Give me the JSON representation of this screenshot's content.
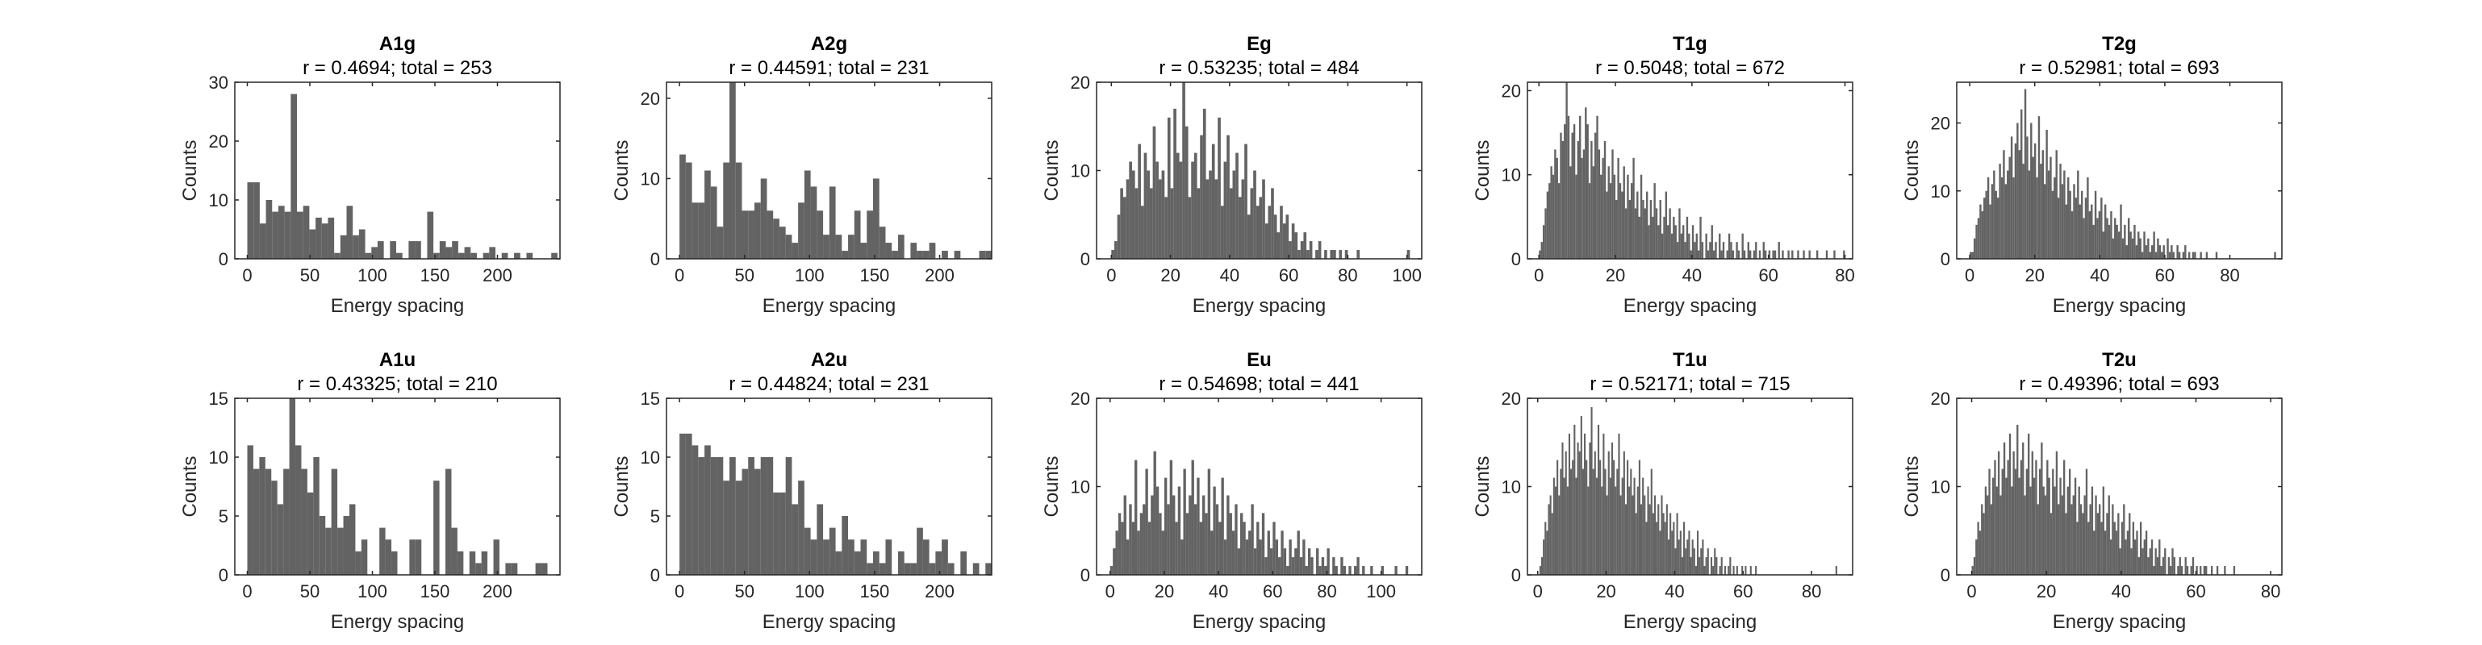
{
  "figure": {
    "bar_color": "#636363",
    "axis_color": "#262626"
  },
  "chart_data": [
    {
      "type": "bar",
      "title": "A1g",
      "subtitle": "r = 0.4694; total = 253",
      "xlabel": "Energy spacing",
      "ylabel": "Counts",
      "xlim": [
        -10,
        250
      ],
      "ylim": [
        0,
        30
      ],
      "xticks": [
        0,
        50,
        100,
        150,
        200
      ],
      "yticks": [
        0,
        10,
        20,
        30
      ],
      "bin_start": 0,
      "bin_width": 4.96,
      "values": [
        13,
        13,
        6,
        10,
        8,
        9,
        8,
        28,
        8,
        9,
        5,
        7,
        6,
        7,
        1,
        4,
        9,
        4,
        5,
        1,
        2,
        3,
        0,
        3,
        1,
        0,
        3,
        3,
        0,
        8,
        1,
        3,
        2,
        3,
        1,
        2,
        1,
        0,
        1,
        2,
        0,
        1,
        0,
        1,
        0,
        1,
        0,
        0,
        0,
        1
      ]
    },
    {
      "type": "bar",
      "title": "A2g",
      "subtitle": "r = 0.44591; total = 231",
      "xlabel": "Energy spacing",
      "ylabel": "Counts",
      "xlim": [
        -10,
        240
      ],
      "ylim": [
        0,
        22
      ],
      "xticks": [
        0,
        50,
        100,
        150,
        200
      ],
      "yticks": [
        0,
        10,
        20
      ],
      "bin_start": 0,
      "bin_width": 4.8,
      "values": [
        13,
        12,
        7,
        7,
        11,
        9,
        4,
        12,
        22,
        12,
        6,
        6,
        7,
        10,
        6,
        5,
        4,
        3,
        2,
        7,
        11,
        9,
        6,
        3,
        9,
        3,
        1,
        3,
        6,
        2,
        6,
        10,
        4,
        2,
        1,
        3,
        0,
        2,
        1,
        1,
        2,
        0,
        1,
        0,
        1,
        0,
        0,
        0,
        1,
        1
      ]
    },
    {
      "type": "bar",
      "title": "Eg",
      "subtitle": "r = 0.53235; total = 484",
      "xlabel": "Energy spacing",
      "ylabel": "Counts",
      "xlim": [
        -5,
        105
      ],
      "ylim": [
        0,
        20
      ],
      "xticks": [
        0,
        20,
        40,
        60,
        80,
        100
      ],
      "yticks": [
        0,
        10,
        20
      ],
      "bin_start": 0,
      "bin_width": 1,
      "values": [
        1,
        2,
        5,
        8,
        7,
        9,
        11,
        10,
        8,
        13,
        6,
        12,
        10,
        8,
        15,
        11,
        9,
        10,
        7,
        16,
        8,
        17,
        12,
        11,
        20,
        15,
        7,
        11,
        12,
        8,
        14,
        17,
        9,
        10,
        13,
        9,
        16,
        6,
        11,
        14,
        8,
        10,
        12,
        7,
        9,
        13,
        5,
        8,
        10,
        6,
        7,
        9,
        4,
        6,
        8,
        5,
        3,
        6,
        4,
        5,
        2,
        4,
        3,
        1,
        2,
        3,
        1,
        2,
        0,
        1,
        2,
        0,
        1,
        0,
        1,
        1,
        0,
        1,
        0,
        1,
        0,
        0,
        0,
        1,
        0,
        0,
        0,
        0,
        0,
        0,
        0,
        0,
        0,
        0,
        0,
        0,
        0,
        0,
        0,
        0,
        1
      ]
    },
    {
      "type": "bar",
      "title": "T1g",
      "subtitle": "r = 0.5048; total = 672",
      "xlabel": "Energy spacing",
      "ylabel": "Counts",
      "xlim": [
        -3,
        82
      ],
      "ylim": [
        0,
        21
      ],
      "xticks": [
        0,
        20,
        40,
        60,
        80
      ],
      "yticks": [
        0,
        10,
        20
      ],
      "bin_start": 0,
      "bin_width": 0.5,
      "values": [
        1,
        2,
        4,
        6,
        8,
        9,
        11,
        10,
        13,
        12,
        9,
        15,
        14,
        16,
        21,
        17,
        11,
        15,
        16,
        10,
        14,
        17,
        12,
        13,
        18,
        16,
        9,
        14,
        11,
        15,
        17,
        13,
        10,
        12,
        14,
        8,
        11,
        9,
        13,
        10,
        7,
        12,
        9,
        8,
        11,
        6,
        10,
        7,
        9,
        12,
        6,
        8,
        5,
        10,
        7,
        6,
        8,
        4,
        7,
        5,
        9,
        6,
        4,
        7,
        3,
        5,
        8,
        4,
        6,
        3,
        5,
        4,
        2,
        6,
        3,
        4,
        2,
        5,
        3,
        1,
        4,
        2,
        3,
        1,
        5,
        2,
        0,
        3,
        1,
        2,
        4,
        1,
        2,
        0,
        3,
        1,
        2,
        0,
        1,
        3,
        2,
        1,
        0,
        2,
        1,
        0,
        3,
        1,
        0,
        2,
        1,
        0,
        1,
        2,
        0,
        1,
        0,
        2,
        1,
        0,
        1,
        0,
        1,
        1,
        0,
        2,
        0,
        1,
        0,
        0,
        1,
        0,
        1,
        0,
        0,
        1,
        0,
        0,
        1,
        0,
        0,
        1,
        0,
        0,
        0,
        1,
        0,
        0,
        0,
        0,
        1,
        0,
        0,
        0,
        1,
        0,
        0,
        0,
        0,
        1
      ]
    },
    {
      "type": "bar",
      "title": "T2g",
      "subtitle": "r = 0.52981; total = 693",
      "xlabel": "Energy spacing",
      "ylabel": "Counts",
      "xlim": [
        -4,
        96
      ],
      "ylim": [
        0,
        26
      ],
      "xticks": [
        0,
        20,
        40,
        60,
        80
      ],
      "yticks": [
        0,
        10,
        20
      ],
      "bin_start": 0,
      "bin_width": 0.6,
      "values": [
        1,
        1,
        3,
        5,
        6,
        8,
        7,
        9,
        10,
        12,
        8,
        11,
        13,
        10,
        9,
        14,
        12,
        16,
        11,
        13,
        15,
        18,
        12,
        17,
        20,
        16,
        22,
        14,
        25,
        18,
        13,
        20,
        15,
        17,
        12,
        21,
        14,
        16,
        11,
        19,
        13,
        15,
        10,
        12,
        16,
        9,
        14,
        11,
        13,
        8,
        12,
        10,
        7,
        11,
        9,
        13,
        8,
        10,
        6,
        9,
        12,
        7,
        8,
        5,
        10,
        6,
        7,
        9,
        4,
        8,
        6,
        5,
        7,
        3,
        6,
        5,
        4,
        8,
        3,
        5,
        2,
        6,
        4,
        3,
        5,
        2,
        4,
        3,
        1,
        4,
        2,
        3,
        1,
        2,
        4,
        1,
        3,
        2,
        1,
        2,
        0,
        3,
        1,
        2,
        1,
        0,
        2,
        1,
        0,
        1,
        2,
        0,
        1,
        0,
        1,
        1,
        0,
        0,
        1,
        0,
        0,
        1,
        0,
        0,
        0,
        0,
        1,
        0,
        0,
        0,
        0,
        0,
        0,
        0,
        0,
        0,
        0,
        0,
        0,
        0,
        0,
        0,
        0,
        0,
        0,
        0,
        0,
        0,
        0,
        0,
        0,
        0,
        0,
        0,
        0,
        0,
        1
      ]
    },
    {
      "type": "bar",
      "title": "A1u",
      "subtitle": "r = 0.43325; total = 210",
      "xlabel": "Energy spacing",
      "ylabel": "Counts",
      "xlim": [
        -10,
        250
      ],
      "ylim": [
        0,
        15
      ],
      "xticks": [
        0,
        50,
        100,
        150,
        200
      ],
      "yticks": [
        0,
        5,
        10,
        15
      ],
      "bin_start": 0,
      "bin_width": 4.8,
      "values": [
        11,
        9,
        10,
        9,
        8,
        6,
        9,
        15,
        11,
        9,
        7,
        10,
        5,
        4,
        9,
        4,
        5,
        6,
        2,
        3,
        0,
        0,
        4,
        3,
        2,
        0,
        0,
        3,
        3,
        0,
        0,
        8,
        0,
        9,
        4,
        2,
        0,
        2,
        1,
        2,
        0,
        3,
        0,
        1,
        1,
        0,
        0,
        0,
        1,
        1
      ]
    },
    {
      "type": "bar",
      "title": "A2u",
      "subtitle": "r = 0.44824; total = 231",
      "xlabel": "Energy spacing",
      "ylabel": "Counts",
      "xlim": [
        -10,
        240
      ],
      "ylim": [
        0,
        15
      ],
      "xticks": [
        0,
        50,
        100,
        150,
        200
      ],
      "yticks": [
        0,
        5,
        10,
        15
      ],
      "bin_start": 0,
      "bin_width": 4.8,
      "values": [
        12,
        12,
        11,
        10,
        11,
        10,
        10,
        8,
        10,
        8,
        9,
        10,
        9,
        10,
        10,
        7,
        7,
        10,
        6,
        8,
        4,
        3,
        6,
        3,
        4,
        2,
        5,
        3,
        2,
        3,
        1,
        2,
        1,
        3,
        0,
        2,
        1,
        1,
        4,
        3,
        1,
        2,
        3,
        1,
        0,
        2,
        0,
        1,
        0,
        1
      ]
    },
    {
      "type": "bar",
      "title": "Eu",
      "subtitle": "r = 0.54698; total = 441",
      "xlabel": "Energy spacing",
      "ylabel": "Counts",
      "xlim": [
        -5,
        115
      ],
      "ylim": [
        0,
        20
      ],
      "xticks": [
        0,
        20,
        40,
        60,
        80,
        100
      ],
      "yticks": [
        0,
        10,
        20
      ],
      "bin_start": 0,
      "bin_width": 1,
      "values": [
        1,
        3,
        5,
        7,
        6,
        9,
        4,
        8,
        6,
        13,
        5,
        7,
        8,
        12,
        6,
        9,
        14,
        10,
        7,
        5,
        11,
        8,
        13,
        9,
        6,
        10,
        4,
        12,
        7,
        9,
        13,
        8,
        11,
        6,
        9,
        7,
        12,
        5,
        10,
        8,
        6,
        11,
        4,
        9,
        7,
        5,
        8,
        3,
        7,
        6,
        4,
        5,
        8,
        3,
        6,
        4,
        7,
        2,
        5,
        3,
        6,
        4,
        2,
        5,
        3,
        1,
        4,
        2,
        3,
        5,
        2,
        4,
        1,
        3,
        2,
        0,
        3,
        1,
        2,
        1,
        3,
        0,
        2,
        1,
        0,
        2,
        1,
        0,
        1,
        0,
        1,
        2,
        0,
        1,
        0,
        0,
        1,
        0,
        0,
        0,
        1,
        0,
        0,
        0,
        0,
        1,
        0,
        0,
        0,
        1
      ]
    },
    {
      "type": "bar",
      "title": "T1u",
      "subtitle": "r = 0.52171; total = 715",
      "xlabel": "Energy spacing",
      "ylabel": "Counts",
      "xlim": [
        -3,
        92
      ],
      "ylim": [
        0,
        20
      ],
      "xticks": [
        0,
        20,
        40,
        60,
        80
      ],
      "yticks": [
        0,
        10,
        20
      ],
      "bin_start": 0,
      "bin_width": 0.5,
      "values": [
        0,
        1,
        2,
        4,
        6,
        5,
        8,
        9,
        7,
        11,
        10,
        13,
        9,
        12,
        15,
        11,
        14,
        10,
        16,
        12,
        13,
        17,
        11,
        15,
        14,
        18,
        12,
        16,
        13,
        10,
        15,
        19,
        12,
        14,
        11,
        17,
        13,
        10,
        16,
        12,
        9,
        14,
        11,
        15,
        13,
        10,
        12,
        16,
        9,
        11,
        14,
        8,
        13,
        10,
        12,
        9,
        11,
        7,
        10,
        13,
        8,
        11,
        9,
        6,
        10,
        8,
        12,
        7,
        9,
        6,
        8,
        5,
        9,
        7,
        6,
        8,
        4,
        7,
        5,
        6,
        3,
        7,
        4,
        5,
        2,
        6,
        3,
        4,
        5,
        2,
        4,
        3,
        1,
        5,
        2,
        3,
        4,
        1,
        2,
        3,
        0,
        2,
        1,
        3,
        2,
        0,
        1,
        2,
        0,
        1,
        0,
        1,
        2,
        0,
        1,
        0,
        1,
        0,
        0,
        1,
        0,
        1,
        0,
        0,
        1,
        0,
        0,
        1,
        0,
        0,
        0,
        0,
        0,
        0,
        0,
        0,
        0,
        0,
        0,
        0,
        0,
        0,
        0,
        0,
        0,
        0,
        0,
        0,
        0,
        0,
        0,
        0,
        0,
        0,
        0,
        0,
        0,
        0,
        0,
        0,
        0,
        0,
        0,
        0,
        0,
        0,
        0,
        0,
        0,
        0,
        0,
        0,
        0,
        0,
        1
      ]
    },
    {
      "type": "bar",
      "title": "T2u",
      "subtitle": "r = 0.49396; total = 693",
      "xlabel": "Energy spacing",
      "ylabel": "Counts",
      "xlim": [
        -4,
        83
      ],
      "ylim": [
        0,
        20
      ],
      "xticks": [
        0,
        20,
        40,
        60,
        80
      ],
      "yticks": [
        0,
        10,
        20
      ],
      "bin_start": 0,
      "bin_width": 0.5,
      "values": [
        1,
        2,
        4,
        6,
        5,
        8,
        7,
        10,
        9,
        12,
        8,
        11,
        13,
        10,
        14,
        9,
        12,
        15,
        11,
        13,
        16,
        10,
        14,
        12,
        17,
        11,
        13,
        15,
        9,
        12,
        16,
        10,
        14,
        11,
        13,
        8,
        12,
        15,
        10,
        9,
        13,
        11,
        7,
        12,
        10,
        14,
        8,
        11,
        9,
        13,
        7,
        10,
        12,
        8,
        9,
        11,
        6,
        10,
        8,
        7,
        9,
        12,
        6,
        8,
        10,
        5,
        9,
        7,
        8,
        6,
        10,
        5,
        7,
        9,
        4,
        8,
        6,
        5,
        7,
        3,
        6,
        8,
        4,
        5,
        7,
        3,
        6,
        4,
        5,
        2,
        6,
        3,
        4,
        5,
        2,
        3,
        4,
        1,
        3,
        2,
        4,
        1,
        2,
        3,
        0,
        2,
        1,
        3,
        2,
        0,
        1,
        2,
        1,
        0,
        2,
        1,
        0,
        1,
        2,
        0,
        1,
        0,
        1,
        0,
        1,
        1,
        0,
        0,
        1,
        0,
        0,
        1,
        0,
        0,
        0,
        1,
        0,
        0,
        0,
        0,
        1
      ]
    }
  ]
}
